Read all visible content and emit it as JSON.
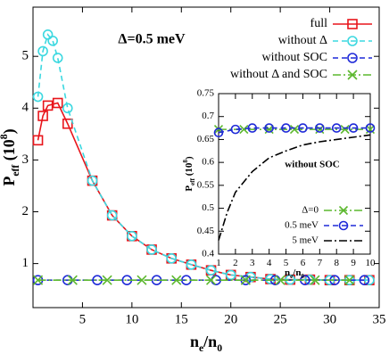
{
  "chart_data": [
    {
      "type": "line",
      "annotation": "Δ=0.5 meV",
      "xlabel": [
        "n",
        "e",
        "/n",
        "0"
      ],
      "ylabel": [
        "P",
        "eff",
        " (10",
        "8",
        ")"
      ],
      "xlim": [
        0,
        35
      ],
      "ylim": [
        0.15,
        5.95
      ],
      "xticks": [
        5,
        10,
        15,
        20,
        25,
        30,
        35
      ],
      "yticks": [
        1,
        2,
        3,
        4,
        5
      ],
      "legend": "upper right",
      "series": [
        {
          "name": "full",
          "color": "#e8151b",
          "marker": "square",
          "line_style": "solid",
          "x": [
            0.5,
            1,
            1.5,
            2.5,
            3.5,
            6,
            8,
            10,
            12,
            14,
            16,
            18,
            20,
            22,
            24,
            26,
            28,
            30,
            32,
            34
          ],
          "values": [
            3.38,
            3.85,
            4.05,
            4.1,
            3.7,
            2.6,
            1.93,
            1.53,
            1.27,
            1.1,
            0.98,
            0.87,
            0.78,
            0.74,
            0.7,
            0.69,
            0.69,
            0.68,
            0.68,
            0.68
          ]
        },
        {
          "name": "without Δ",
          "color": "#3cd8e0",
          "marker": "circle",
          "line_style": "dashed",
          "x": [
            0.5,
            1,
            1.5,
            2,
            2.5,
            3.5,
            6,
            8,
            10,
            12,
            14,
            16,
            18,
            20,
            22,
            24,
            26,
            28,
            30,
            32,
            34
          ],
          "values": [
            4.22,
            5.1,
            5.42,
            5.3,
            4.97,
            4.0,
            2.6,
            1.93,
            1.53,
            1.27,
            1.1,
            0.98,
            0.87,
            0.78,
            0.74,
            0.7,
            0.69,
            0.69,
            0.68,
            0.68,
            0.68
          ]
        },
        {
          "name": "without SOC",
          "color": "#1f2ad8",
          "marker": "circle",
          "line_style": "dashed",
          "x": [
            0.5,
            3.5,
            6.5,
            9.5,
            12.5,
            15.5,
            18.5,
            21.5,
            24.5,
            27.5,
            30.5,
            33.5
          ],
          "values": [
            0.68,
            0.68,
            0.68,
            0.68,
            0.68,
            0.68,
            0.68,
            0.68,
            0.68,
            0.68,
            0.68,
            0.68
          ]
        },
        {
          "name": "without Δ and SOC",
          "color": "#5cb82e",
          "marker": "cross",
          "line_style": "dashdot",
          "x": [
            0.5,
            4,
            7.5,
            11,
            14.5,
            18,
            21.5,
            25,
            28.5,
            32
          ],
          "values": [
            0.68,
            0.68,
            0.68,
            0.68,
            0.68,
            0.68,
            0.68,
            0.68,
            0.68,
            0.68
          ]
        }
      ]
    },
    {
      "type": "line",
      "annotation": "without SOC",
      "xlabel": [
        "n",
        "e",
        "/n",
        "0"
      ],
      "ylabel": [
        "P",
        "eff",
        " (10",
        "8",
        ")"
      ],
      "xlim": [
        1,
        10
      ],
      "ylim": [
        0.4,
        0.75
      ],
      "xticks": [
        1,
        2,
        3,
        4,
        5,
        6,
        7,
        8,
        9,
        10
      ],
      "yticks": [
        0.4,
        0.45,
        0.5,
        0.55,
        0.6,
        0.65,
        0.7,
        0.75
      ],
      "legend": "lower right",
      "series": [
        {
          "name": "Δ=0",
          "color": "#5cb82e",
          "marker": "cross",
          "line_style": "dashdot",
          "x": [
            1,
            2.5,
            4,
            5.5,
            7,
            8.5,
            10
          ],
          "values": [
            0.672,
            0.672,
            0.672,
            0.672,
            0.672,
            0.672,
            0.672
          ]
        },
        {
          "name": "0.5 meV",
          "color": "#1f2ad8",
          "marker": "circle",
          "line_style": "dashed",
          "x": [
            1,
            2,
            3,
            4,
            5,
            6,
            7,
            8,
            9,
            10
          ],
          "values": [
            0.665,
            0.672,
            0.675,
            0.675,
            0.675,
            0.675,
            0.675,
            0.675,
            0.675,
            0.675
          ]
        },
        {
          "name": "5 meV",
          "color": "#000000",
          "marker": "none",
          "line_style": "dashdot",
          "x": [
            1,
            1.5,
            2,
            3,
            4,
            5,
            6,
            7,
            8,
            9,
            10
          ],
          "values": [
            0.43,
            0.49,
            0.535,
            0.58,
            0.61,
            0.625,
            0.638,
            0.645,
            0.65,
            0.655,
            0.66
          ]
        }
      ]
    }
  ]
}
